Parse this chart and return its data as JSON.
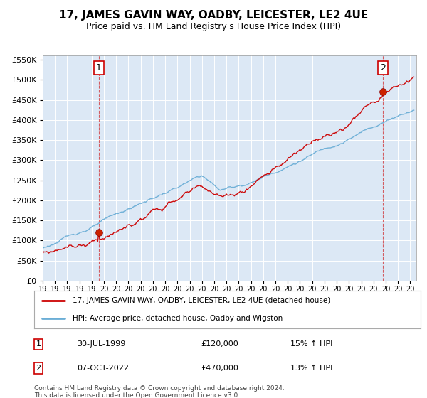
{
  "title": "17, JAMES GAVIN WAY, OADBY, LEICESTER, LE2 4UE",
  "subtitle": "Price paid vs. HM Land Registry's House Price Index (HPI)",
  "legend_line1": "17, JAMES GAVIN WAY, OADBY, LEICESTER, LE2 4UE (detached house)",
  "legend_line2": "HPI: Average price, detached house, Oadby and Wigston",
  "annotation1_label": "1",
  "annotation1_date": "30-JUL-1999",
  "annotation1_price": "£120,000",
  "annotation1_hpi": "15% ↑ HPI",
  "annotation1_year": 1999.58,
  "annotation1_value": 120000,
  "annotation2_label": "2",
  "annotation2_date": "07-OCT-2022",
  "annotation2_price": "£470,000",
  "annotation2_hpi": "13% ↑ HPI",
  "annotation2_year": 2022.78,
  "annotation2_value": 470000,
  "footer": "Contains HM Land Registry data © Crown copyright and database right 2024.\nThis data is licensed under the Open Government Licence v3.0.",
  "hpi_color": "#6baed6",
  "price_color": "#cc0000",
  "plot_bg_color": "#dce8f5",
  "ylim": [
    0,
    560000
  ],
  "xlim_start": 1995.0,
  "xlim_end": 2025.5
}
